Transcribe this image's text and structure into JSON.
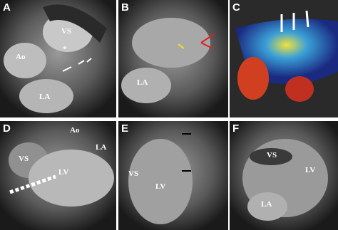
{
  "panels": [
    {
      "letter": "A",
      "labels": [
        "VS",
        "Ao",
        "LA",
        "*"
      ]
    },
    {
      "letter": "B",
      "labels": [
        "LA"
      ]
    },
    {
      "letter": "C",
      "labels": []
    },
    {
      "letter": "D",
      "labels": [
        "Ao",
        "VS",
        "LA",
        "LV"
      ]
    },
    {
      "letter": "E",
      "labels": [
        "VS",
        "LV"
      ]
    },
    {
      "letter": "F",
      "labels": [
        "VS",
        "LV",
        "LA"
      ]
    }
  ]
}
